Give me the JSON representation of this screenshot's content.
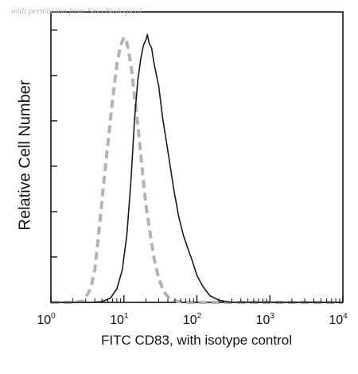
{
  "watermark": "with permission from Sino Biological",
  "chart_data": {
    "type": "line",
    "xlabel": "FITC CD83, with isotype control",
    "ylabel": "Relative Cell Number",
    "xscale": "log",
    "xlim": [
      1,
      10000
    ],
    "ylim": [
      0,
      1
    ],
    "x_ticks": [
      {
        "base": "10",
        "exp": "0",
        "value": 1
      },
      {
        "base": "10",
        "exp": "1",
        "value": 10
      },
      {
        "base": "10",
        "exp": "2",
        "value": 100
      },
      {
        "base": "10",
        "exp": "3",
        "value": 1000
      },
      {
        "base": "10",
        "exp": "4",
        "value": 10000
      }
    ],
    "y_tick_count": 6,
    "series": [
      {
        "name": "",
        "style": "dashed",
        "color": "#b3b3b3",
        "points": [
          [
            1,
            0
          ],
          [
            2,
            0
          ],
          [
            2.8,
            0.005
          ],
          [
            3.5,
            0.05
          ],
          [
            4,
            0.12
          ],
          [
            4.5,
            0.25
          ],
          [
            5.2,
            0.42
          ],
          [
            6,
            0.58
          ],
          [
            7,
            0.75
          ],
          [
            8,
            0.88
          ],
          [
            9,
            0.95
          ],
          [
            10,
            0.98
          ],
          [
            11,
            0.96
          ],
          [
            12.5,
            0.88
          ],
          [
            14,
            0.76
          ],
          [
            16,
            0.62
          ],
          [
            18,
            0.48
          ],
          [
            20,
            0.36
          ],
          [
            23,
            0.25
          ],
          [
            26,
            0.16
          ],
          [
            30,
            0.09
          ],
          [
            35,
            0.04
          ],
          [
            42,
            0.015
          ],
          [
            55,
            0.003
          ],
          [
            80,
            0
          ],
          [
            10000,
            0
          ]
        ]
      },
      {
        "name": "",
        "style": "solid",
        "color": "#1a1a1a",
        "points": [
          [
            1,
            0
          ],
          [
            3.5,
            0
          ],
          [
            5,
            0.003
          ],
          [
            6.5,
            0.015
          ],
          [
            8,
            0.05
          ],
          [
            9.5,
            0.12
          ],
          [
            11,
            0.25
          ],
          [
            12.5,
            0.45
          ],
          [
            14,
            0.68
          ],
          [
            15.5,
            0.82
          ],
          [
            17,
            0.9
          ],
          [
            18.5,
            0.95
          ],
          [
            20,
            0.97
          ],
          [
            21,
            0.99
          ],
          [
            22,
            0.96
          ],
          [
            24,
            0.94
          ],
          [
            26,
            0.88
          ],
          [
            30,
            0.8
          ],
          [
            34,
            0.68
          ],
          [
            40,
            0.56
          ],
          [
            48,
            0.42
          ],
          [
            56,
            0.32
          ],
          [
            65,
            0.25
          ],
          [
            75,
            0.2
          ],
          [
            85,
            0.16
          ],
          [
            100,
            0.1
          ],
          [
            120,
            0.06
          ],
          [
            150,
            0.025
          ],
          [
            200,
            0.008
          ],
          [
            280,
            0.001
          ],
          [
            10000,
            0
          ]
        ]
      }
    ],
    "grid": false,
    "legend": "none"
  }
}
